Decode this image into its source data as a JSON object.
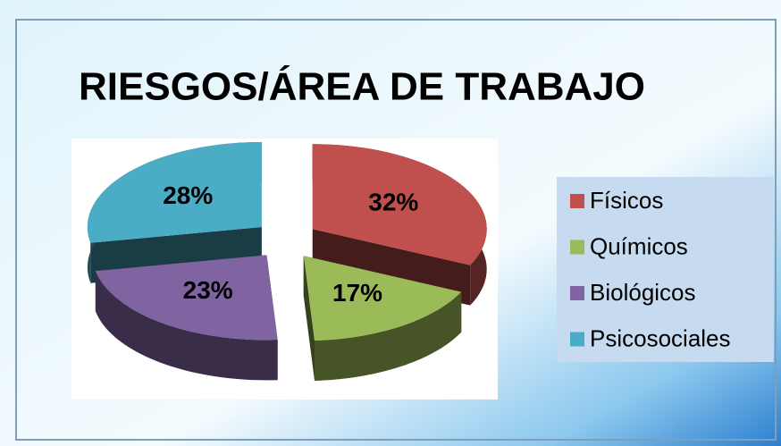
{
  "chart_data": {
    "type": "pie",
    "title": "RIESGOS/ÁREA DE TRABAJO",
    "categories": [
      "Físicos",
      "Químicos",
      "Biológicos",
      "Psicosociales"
    ],
    "values": [
      32,
      17,
      23,
      28
    ],
    "value_labels": [
      "32%",
      "17%",
      "23%",
      "28%"
    ],
    "colors": [
      "#c0504d",
      "#9bbb59",
      "#8064a2",
      "#4bacc6"
    ],
    "legend": "right"
  }
}
